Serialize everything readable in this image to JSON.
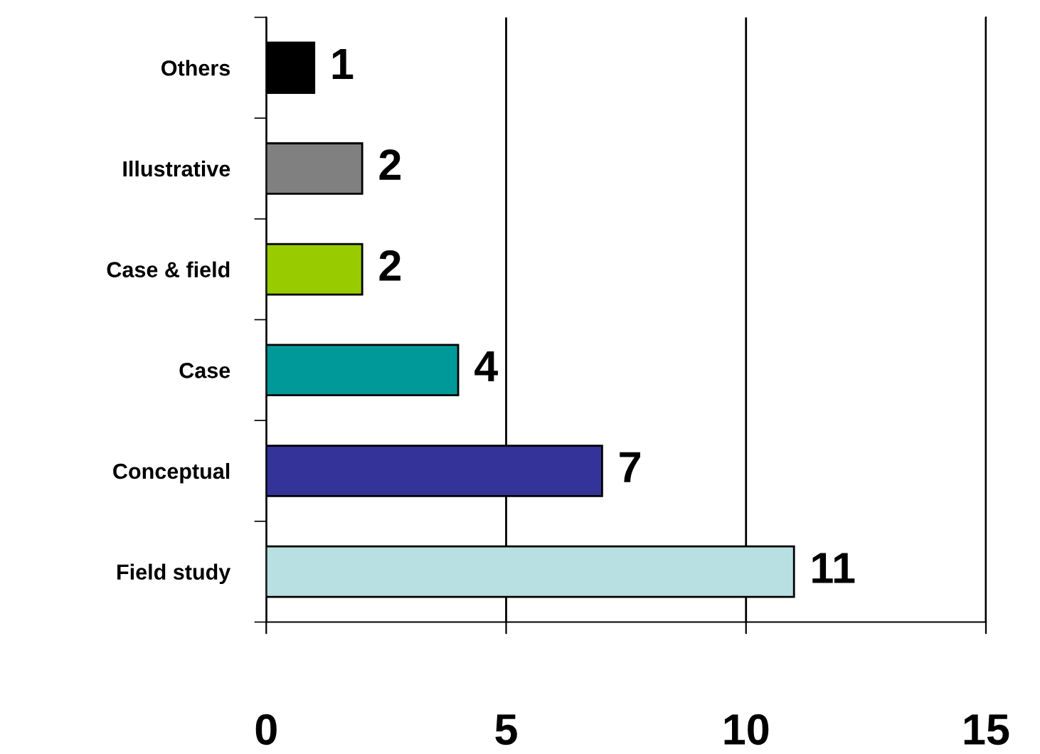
{
  "chart_data": {
    "type": "bar",
    "orientation": "horizontal",
    "categories": [
      "Others",
      "Illustrative",
      "Case & field",
      "Case",
      "Conceptual",
      "Field study"
    ],
    "values": [
      1,
      2,
      2,
      4,
      7,
      11
    ],
    "colors": [
      "#000000",
      "#808080",
      "#99cc00",
      "#009999",
      "#333399",
      "#b8e0e2"
    ],
    "xlim": [
      0,
      15
    ],
    "xticks": [
      0,
      5,
      10,
      15
    ],
    "grid": "x",
    "data_labels": true
  }
}
